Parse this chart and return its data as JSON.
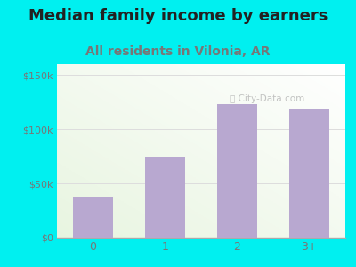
{
  "title": "Median family income by earners",
  "subtitle": "All residents in Vilonia, AR",
  "categories": [
    "0",
    "1",
    "2",
    "3+"
  ],
  "values": [
    38000,
    75000,
    123000,
    118000
  ],
  "bar_color": "#b8a8d0",
  "background_color": "#00f0f0",
  "yticks": [
    0,
    50000,
    100000,
    150000
  ],
  "ytick_labels": [
    "$0",
    "$50k",
    "$100k",
    "$150k"
  ],
  "ylim": [
    0,
    160000
  ],
  "title_fontsize": 13,
  "subtitle_fontsize": 10,
  "title_color": "#222222",
  "subtitle_color": "#777777",
  "tick_color": "#777777",
  "watermark_text": "City-Data.com",
  "grid_color": "#dddddd"
}
